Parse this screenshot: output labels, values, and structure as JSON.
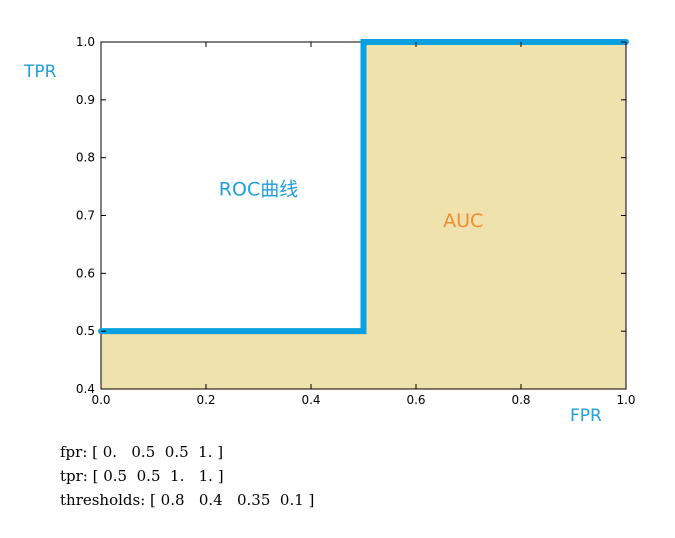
{
  "chart_data": {
    "type": "line",
    "series": [
      {
        "x": [
          0.0,
          0.5,
          0.5,
          1.0
        ],
        "y": [
          0.5,
          0.5,
          1.0,
          1.0
        ],
        "fill_below": true
      }
    ],
    "xlim": [
      0.0,
      1.0
    ],
    "ylim": [
      0.4,
      1.0
    ],
    "x_ticks": [
      "0.0",
      "0.2",
      "0.4",
      "0.6",
      "0.8",
      "1.0"
    ],
    "y_ticks": [
      "0.4",
      "0.5",
      "0.6",
      "0.7",
      "0.8",
      "0.9",
      "1.0"
    ],
    "xlabel": "FPR",
    "ylabel": "TPR",
    "annotations": [
      {
        "text": "ROC曲线",
        "x": 0.3,
        "y": 0.735,
        "color": "#1fa0dc"
      },
      {
        "text": "AUC",
        "x": 0.69,
        "y": 0.68,
        "color": "#f28b30"
      }
    ],
    "grid": false,
    "colors": {
      "line": "#0aa0e0",
      "fill": "#efe2ad",
      "axis_label": "#1fa0dc",
      "frame": "#000000"
    }
  },
  "console": {
    "lines": [
      "fpr: [ 0.   0.5  0.5  1. ]",
      "tpr: [ 0.5  0.5  1.   1. ]",
      "thresholds: [ 0.8   0.4   0.35  0.1 ]"
    ]
  }
}
